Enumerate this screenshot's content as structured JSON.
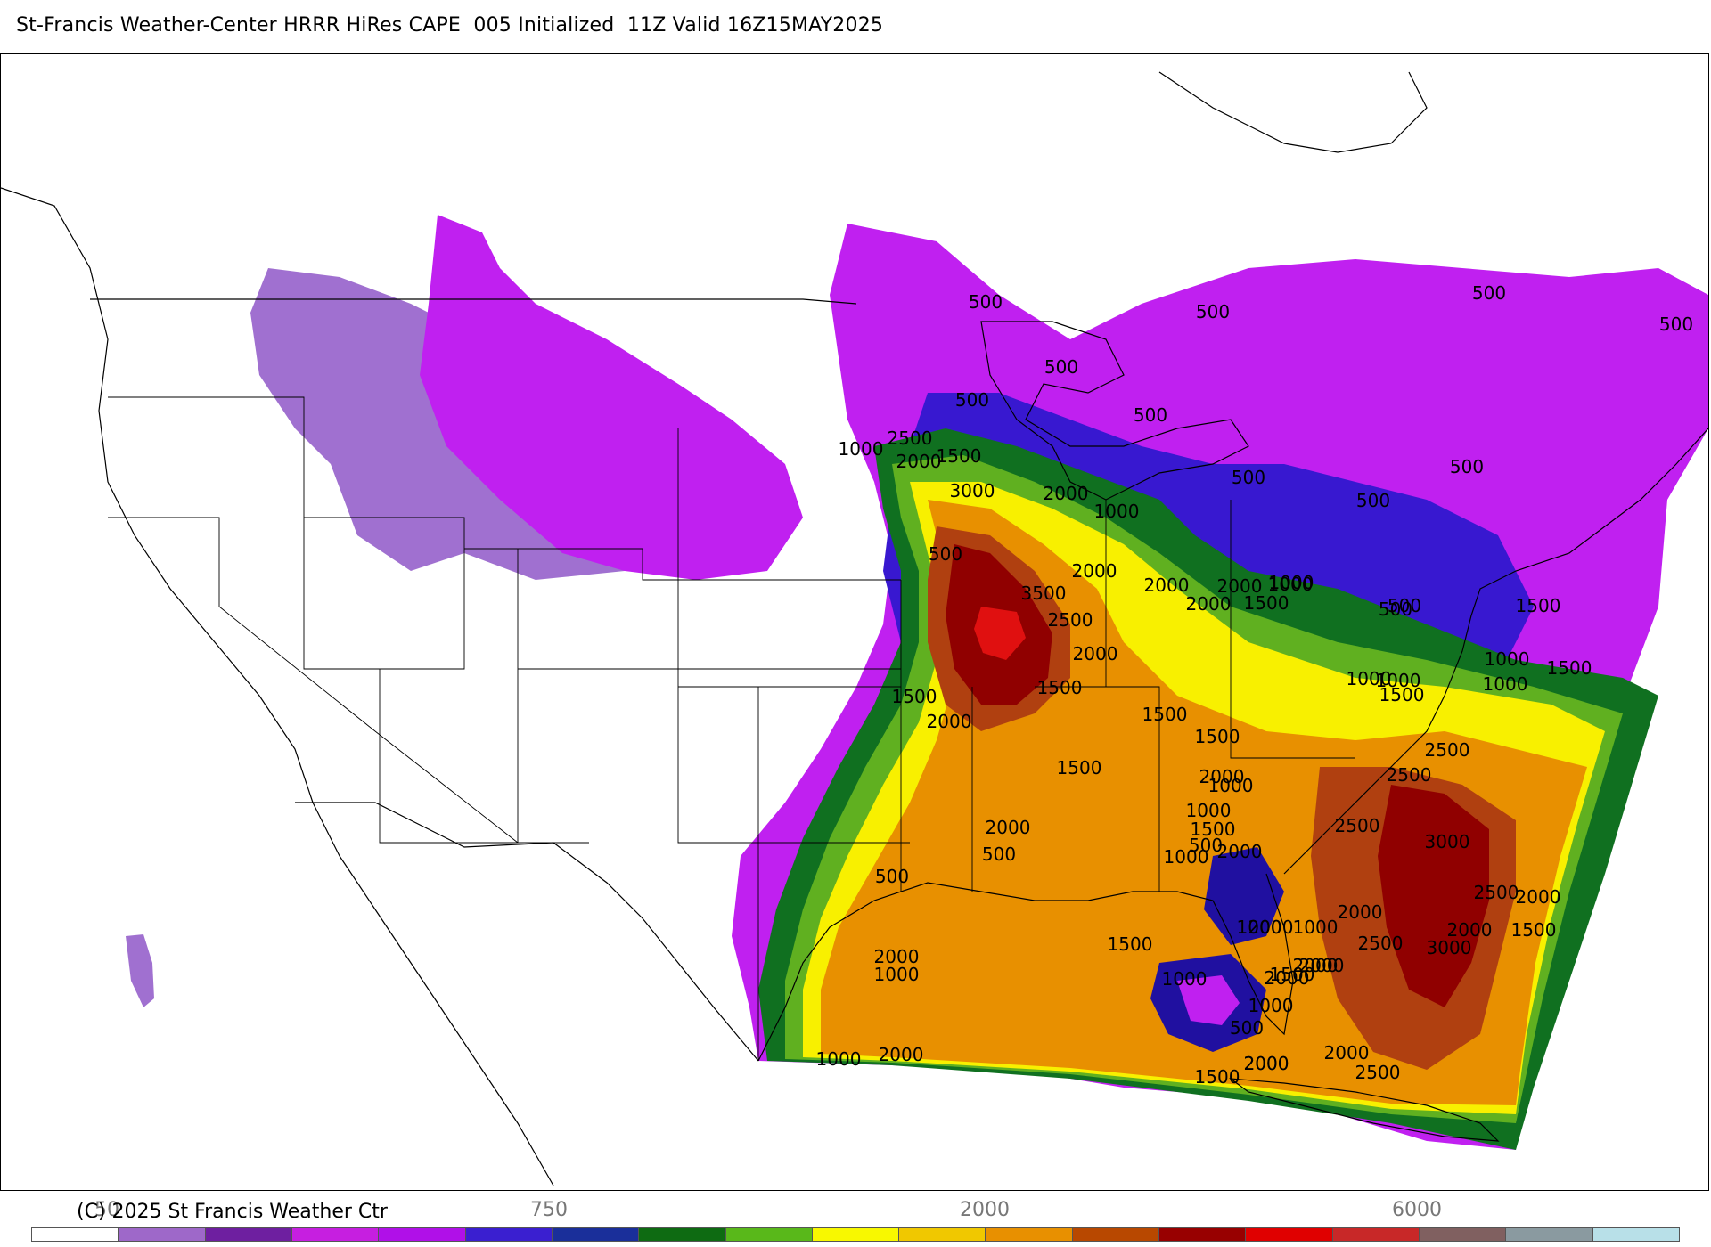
{
  "header": {
    "title": "St-Francis Weather-Center HRRR HiRes CAPE  005 Initialized  11Z Valid 16Z15MAY2025"
  },
  "footer": {
    "copyright": "(C) 2025 St Francis Weather Ctr",
    "scale_labels": [
      "50",
      "750",
      "2000",
      "6000"
    ]
  },
  "colorbar": {
    "colors": [
      "#ffffff",
      "#9e68c9",
      "#6e1fa0",
      "#c61fe0",
      "#b010e8",
      "#3a1fd0",
      "#1a2f9a",
      "#0e6b12",
      "#59b81a",
      "#f8f800",
      "#f0c800",
      "#e89000",
      "#b84800",
      "#980000",
      "#e00000",
      "#c82828",
      "#806060",
      "#8a9aa0",
      "#b8e0e8"
    ]
  },
  "map": {
    "colors": {
      "light_purple": "#a070d0",
      "magenta": "#c020f0",
      "blue": "#3818d0",
      "dark_blue": "#2010a0",
      "dark_green": "#107020",
      "green": "#60b020",
      "yellow": "#f8f000",
      "gold": "#f0c000",
      "orange": "#e89000",
      "rust": "#b04010",
      "dark_red": "#900000",
      "red": "#e01010"
    },
    "contour_labels": [
      "500",
      "500",
      "500",
      "500",
      "500",
      "500",
      "500",
      "500",
      "500",
      "500",
      "500",
      "1000",
      "2500",
      "2000",
      "1500",
      "3000",
      "2000",
      "1000",
      "500",
      "2000",
      "2000",
      "3500",
      "2500",
      "2000",
      "1500",
      "1000",
      "2000",
      "2000",
      "1000",
      "500",
      "1500",
      "1000",
      "1500",
      "1000",
      "1000",
      "1500",
      "1500",
      "2000",
      "1500",
      "1500",
      "1000",
      "1500",
      "2500",
      "2500",
      "2000",
      "1000",
      "1500",
      "1000",
      "1500",
      "2000",
      "2500",
      "3000",
      "2500",
      "2000",
      "2000",
      "500",
      "2000",
      "500",
      "1000",
      "2000",
      "1000",
      "1500",
      "2000",
      "2500",
      "3000",
      "1000",
      "2000",
      "1500",
      "1000",
      "1000",
      "500",
      "1500",
      "2000",
      "2000",
      "2500",
      "2000",
      "2000",
      "1500",
      "2000",
      "500",
      "2000",
      "1000",
      "2000",
      "1000"
    ]
  }
}
